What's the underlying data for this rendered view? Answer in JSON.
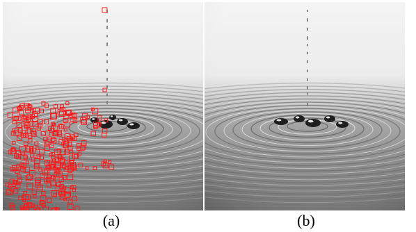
{
  "panels": [
    {
      "caption": "(a)",
      "feature_markers": true
    },
    {
      "caption": "(b)",
      "feature_markers": false
    }
  ],
  "colors": {
    "marker": "#ff1a1a",
    "background": "#ffffff"
  }
}
